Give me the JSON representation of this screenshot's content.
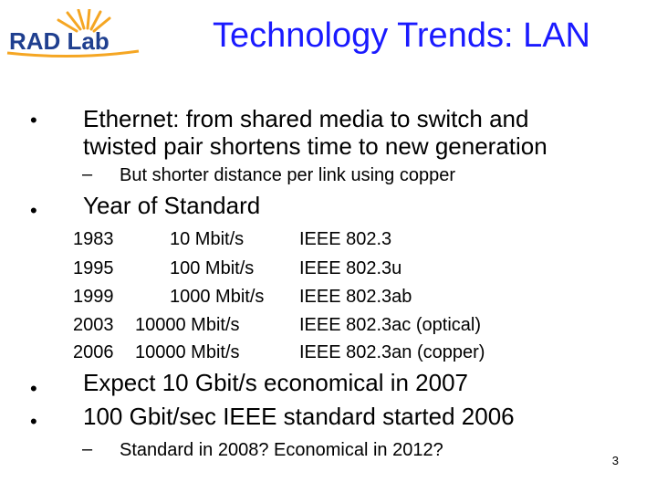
{
  "logo": {
    "text": "RAD Lab"
  },
  "title": "Technology Trends: LAN",
  "bullet_symbol": "•",
  "dash_symbol": "–",
  "bullets": [
    {
      "text_line1": "Ethernet: from shared media to switch and",
      "text_line2": "twisted pair shortens time to new generation"
    },
    {
      "text": "Year of Standard"
    },
    {
      "text": "Expect 10 Gbit/s economical in 2007"
    },
    {
      "text": "100 Gbit/sec IEEE standard started 2006"
    }
  ],
  "subbullets": [
    {
      "text": "But shorter distance per link using copper"
    },
    {
      "text": "Standard in 2008? Economical in 2012?"
    }
  ],
  "standards_table": [
    {
      "year": "1983",
      "speed": "10 Mbit/s",
      "standard": "IEEE 802.3"
    },
    {
      "year": "1995",
      "speed": "100 Mbit/s",
      "standard": "IEEE 802.3u"
    },
    {
      "year": "1999",
      "speed": "1000 Mbit/s",
      "standard": "IEEE 802.3ab"
    },
    {
      "year": "2003",
      "speed": "10000 Mbit/s",
      "standard": "IEEE 802.3ac (optical)"
    },
    {
      "year": "2006",
      "speed": "10000 Mbit/s",
      "standard": "IEEE 802.3an (copper)"
    }
  ],
  "page_number": "3",
  "colors": {
    "title": "#1a1aff",
    "logo_text": "#1f3f8f",
    "logo_accent": "#f5a623"
  }
}
